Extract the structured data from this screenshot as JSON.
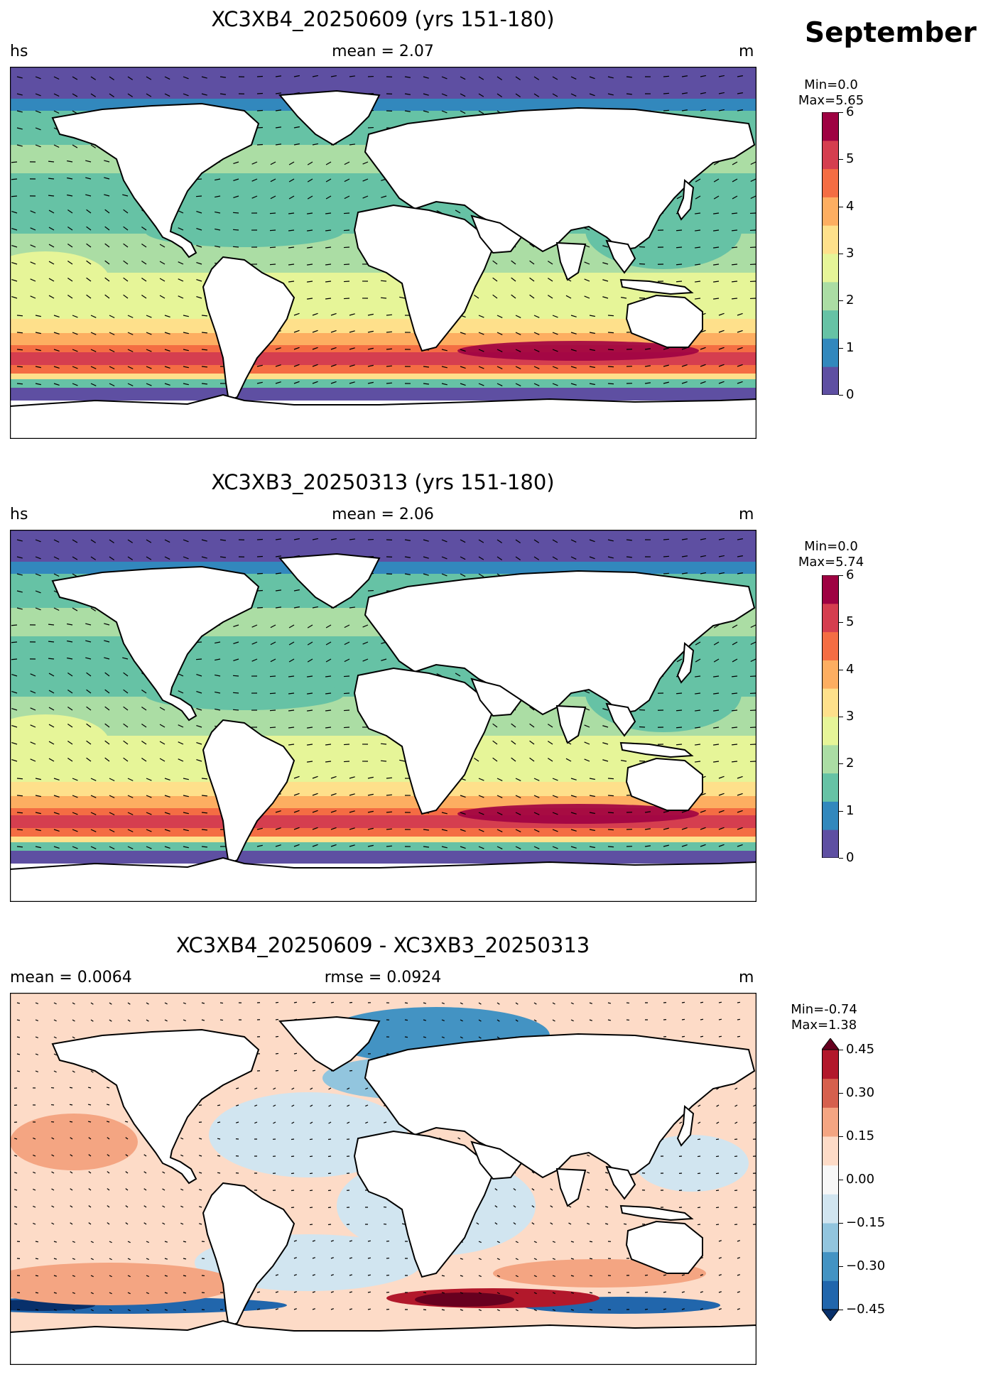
{
  "figure": {
    "month": "September"
  },
  "panels": [
    {
      "id": "top",
      "title": "XC3XB4_20250609 (yrs 151-180)",
      "left": "hs",
      "center": "mean = 2.07",
      "right": "m",
      "cb_min": "Min=0.0",
      "cb_max": "Max=5.65",
      "ticks": [
        "6",
        "5",
        "4",
        "3",
        "2",
        "1",
        "0"
      ],
      "palette": [
        "#5e4fa2",
        "#3288bd",
        "#66c2a5",
        "#abdda4",
        "#e6f598",
        "#fee08b",
        "#fdae61",
        "#f46d43",
        "#d53e4f",
        "#9e0142"
      ]
    },
    {
      "id": "middle",
      "title": "XC3XB3_20250313 (yrs 151-180)",
      "left": "hs",
      "center": "mean = 2.06",
      "right": "m",
      "cb_min": "Min=0.0",
      "cb_max": "Max=5.74",
      "ticks": [
        "6",
        "5",
        "4",
        "3",
        "2",
        "1",
        "0"
      ],
      "palette": [
        "#5e4fa2",
        "#3288bd",
        "#66c2a5",
        "#abdda4",
        "#e6f598",
        "#fee08b",
        "#fdae61",
        "#f46d43",
        "#d53e4f",
        "#9e0142"
      ]
    },
    {
      "id": "bottom",
      "title": "XC3XB4_20250609 - XC3XB3_20250313",
      "left": "mean = 0.0064",
      "center": "rmse = 0.0924",
      "right": "m",
      "cb_min": "Min=-0.74",
      "cb_max": "Max=1.38",
      "ticks": [
        "0.45",
        "0.30",
        "0.15",
        "0.00",
        "−0.15",
        "−0.30",
        "−0.45"
      ],
      "palette": [
        "#08306b",
        "#2166ac",
        "#4393c3",
        "#92c5de",
        "#d1e5f0",
        "#f7f7f7",
        "#fddbc7",
        "#f4a582",
        "#d6604d",
        "#b2182b",
        "#67001f"
      ]
    }
  ]
}
